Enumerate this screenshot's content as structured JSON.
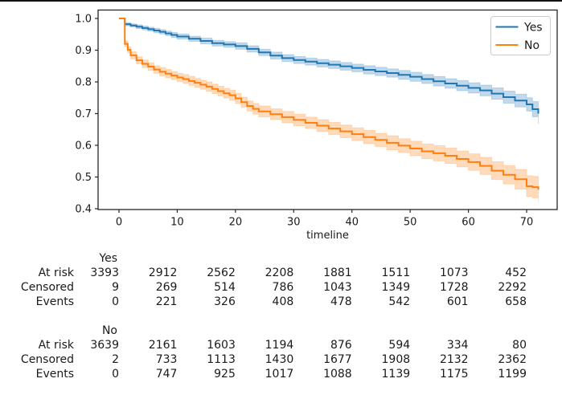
{
  "figure": {
    "top_border_color": "#111111",
    "background_color": "#ffffff",
    "axis_color": "#262626",
    "text_color": "#1a1a1a"
  },
  "chart_data": {
    "type": "line",
    "variant": "kaplan-meier-step-with-ci-band",
    "title": "",
    "xlabel": "timeline",
    "ylabel": "",
    "xlim": [
      -3.6,
      75.3
    ],
    "ylim": [
      0.4,
      1.025
    ],
    "grid": false,
    "xticks": [
      0,
      10,
      20,
      30,
      40,
      50,
      60,
      70
    ],
    "yticks": [
      "1.0",
      "0.9",
      "0.8",
      "0.7",
      "0.6",
      "0.5",
      "0.4"
    ],
    "legend_position": "upper right",
    "series": [
      {
        "name": "Yes",
        "color": "#1f77b4",
        "points": [
          [
            0,
            1.0,
            0
          ],
          [
            1,
            0.982,
            0.005
          ],
          [
            2,
            0.978,
            0.005
          ],
          [
            3,
            0.974,
            0.006
          ],
          [
            4,
            0.97,
            0.006
          ],
          [
            5,
            0.966,
            0.006
          ],
          [
            6,
            0.962,
            0.007
          ],
          [
            7,
            0.958,
            0.007
          ],
          [
            8,
            0.953,
            0.007
          ],
          [
            9,
            0.948,
            0.008
          ],
          [
            10,
            0.943,
            0.008
          ],
          [
            12,
            0.936,
            0.008
          ],
          [
            14,
            0.929,
            0.009
          ],
          [
            16,
            0.922,
            0.009
          ],
          [
            18,
            0.918,
            0.009
          ],
          [
            20,
            0.913,
            0.01
          ],
          [
            22,
            0.904,
            0.01
          ],
          [
            24,
            0.893,
            0.01
          ],
          [
            26,
            0.883,
            0.011
          ],
          [
            28,
            0.875,
            0.011
          ],
          [
            30,
            0.869,
            0.011
          ],
          [
            32,
            0.864,
            0.011
          ],
          [
            34,
            0.859,
            0.012
          ],
          [
            36,
            0.854,
            0.012
          ],
          [
            38,
            0.849,
            0.012
          ],
          [
            40,
            0.844,
            0.012
          ],
          [
            42,
            0.838,
            0.013
          ],
          [
            44,
            0.833,
            0.013
          ],
          [
            46,
            0.828,
            0.013
          ],
          [
            48,
            0.822,
            0.014
          ],
          [
            50,
            0.816,
            0.014
          ],
          [
            52,
            0.809,
            0.014
          ],
          [
            54,
            0.802,
            0.015
          ],
          [
            56,
            0.795,
            0.015
          ],
          [
            58,
            0.788,
            0.016
          ],
          [
            60,
            0.781,
            0.016
          ],
          [
            62,
            0.773,
            0.017
          ],
          [
            64,
            0.763,
            0.018
          ],
          [
            66,
            0.752,
            0.019
          ],
          [
            68,
            0.741,
            0.02
          ],
          [
            70,
            0.729,
            0.021
          ],
          [
            71,
            0.714,
            0.024
          ],
          [
            72,
            0.7,
            0.032
          ]
        ]
      },
      {
        "name": "No",
        "color": "#ff7f0e",
        "points": [
          [
            0,
            1.0,
            0
          ],
          [
            1,
            0.92,
            0.009
          ],
          [
            1.5,
            0.901,
            0.01
          ],
          [
            2,
            0.884,
            0.011
          ],
          [
            3,
            0.868,
            0.011
          ],
          [
            4,
            0.857,
            0.012
          ],
          [
            5,
            0.848,
            0.012
          ],
          [
            6,
            0.839,
            0.012
          ],
          [
            7,
            0.832,
            0.013
          ],
          [
            8,
            0.826,
            0.013
          ],
          [
            9,
            0.82,
            0.013
          ],
          [
            10,
            0.814,
            0.013
          ],
          [
            11,
            0.809,
            0.014
          ],
          [
            12,
            0.803,
            0.014
          ],
          [
            13,
            0.797,
            0.014
          ],
          [
            14,
            0.791,
            0.014
          ],
          [
            15,
            0.785,
            0.015
          ],
          [
            16,
            0.778,
            0.015
          ],
          [
            17,
            0.771,
            0.015
          ],
          [
            18,
            0.764,
            0.015
          ],
          [
            19,
            0.758,
            0.016
          ],
          [
            20,
            0.748,
            0.016
          ],
          [
            21,
            0.736,
            0.016
          ],
          [
            22,
            0.724,
            0.016
          ],
          [
            23,
            0.715,
            0.017
          ],
          [
            24,
            0.707,
            0.017
          ],
          [
            26,
            0.698,
            0.017
          ],
          [
            28,
            0.689,
            0.018
          ],
          [
            30,
            0.68,
            0.018
          ],
          [
            32,
            0.671,
            0.018
          ],
          [
            34,
            0.662,
            0.019
          ],
          [
            36,
            0.653,
            0.019
          ],
          [
            38,
            0.644,
            0.02
          ],
          [
            40,
            0.635,
            0.02
          ],
          [
            42,
            0.626,
            0.021
          ],
          [
            44,
            0.617,
            0.021
          ],
          [
            46,
            0.608,
            0.022
          ],
          [
            48,
            0.599,
            0.022
          ],
          [
            50,
            0.59,
            0.023
          ],
          [
            52,
            0.581,
            0.023
          ],
          [
            54,
            0.575,
            0.024
          ],
          [
            56,
            0.567,
            0.024
          ],
          [
            58,
            0.557,
            0.025
          ],
          [
            60,
            0.547,
            0.026
          ],
          [
            62,
            0.535,
            0.027
          ],
          [
            64,
            0.52,
            0.028
          ],
          [
            66,
            0.507,
            0.029
          ],
          [
            68,
            0.493,
            0.031
          ],
          [
            70,
            0.471,
            0.033
          ],
          [
            71,
            0.468,
            0.034
          ],
          [
            72,
            0.46,
            0.04
          ]
        ]
      }
    ],
    "at_risk_table": {
      "time_columns": [
        0,
        10,
        20,
        30,
        40,
        50,
        60,
        70
      ],
      "row_labels": [
        "At risk",
        "Censored",
        "Events"
      ],
      "groups": [
        {
          "label": "Yes",
          "rows": [
            [
              3393,
              2912,
              2562,
              2208,
              1881,
              1511,
              1073,
              452
            ],
            [
              9,
              269,
              514,
              786,
              1043,
              1349,
              1728,
              2292
            ],
            [
              0,
              221,
              326,
              408,
              478,
              542,
              601,
              658
            ]
          ]
        },
        {
          "label": "No",
          "rows": [
            [
              3639,
              2161,
              1603,
              1194,
              876,
              594,
              334,
              80
            ],
            [
              2,
              733,
              1113,
              1430,
              1677,
              1908,
              2132,
              2362
            ],
            [
              0,
              747,
              925,
              1017,
              1088,
              1139,
              1175,
              1199
            ]
          ]
        }
      ]
    }
  }
}
